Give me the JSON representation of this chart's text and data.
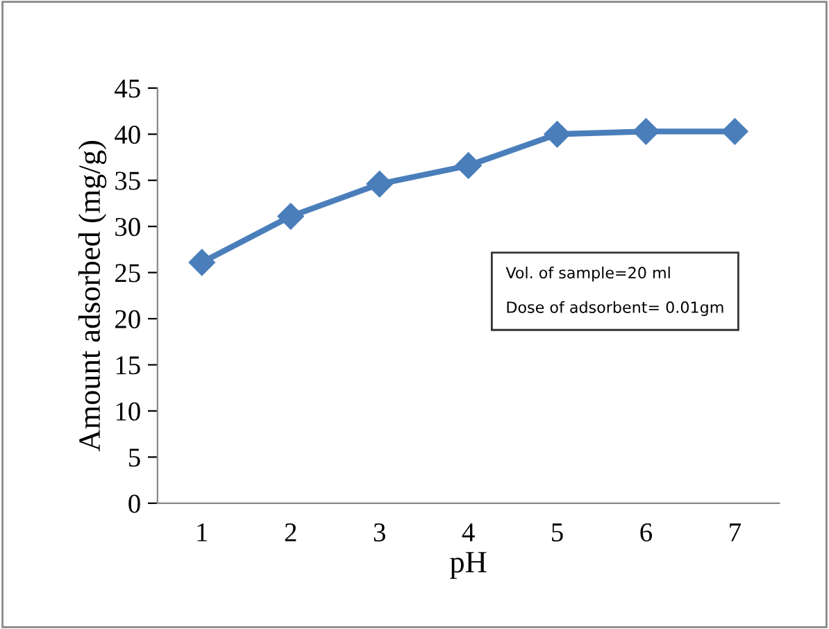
{
  "chart_data": {
    "type": "line",
    "xlabel": "pH",
    "ylabel": "Amount adsorbed (mg/g)",
    "categories": [
      "1",
      "2",
      "3",
      "4",
      "5",
      "6",
      "7"
    ],
    "series": [
      {
        "color": "#4a7ebb",
        "values": [
          26.1,
          31.1,
          34.6,
          36.6,
          40.0,
          40.3,
          40.3
        ]
      }
    ],
    "ylim": [
      0,
      45
    ],
    "yticks": [
      0,
      5,
      10,
      15,
      20,
      25,
      30,
      35,
      40,
      45
    ],
    "marker": "diamond",
    "line_style": "solid",
    "grid": false,
    "legend": false,
    "annotations": [
      "Vol. of sample=20 ml\n\nDose of adsorbent= 0.01gm"
    ]
  }
}
